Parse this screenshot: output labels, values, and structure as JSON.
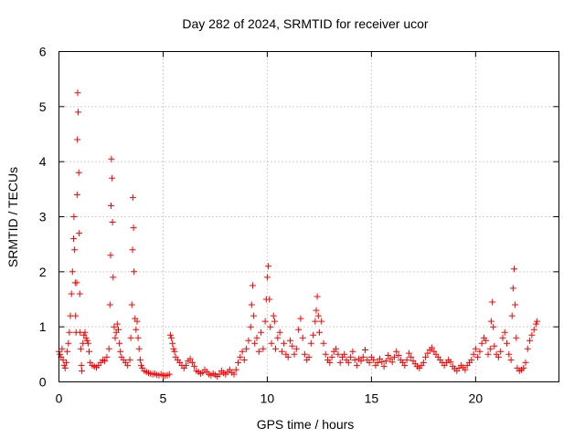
{
  "chart_data": {
    "type": "scatter",
    "title": "Day 282 of 2024, SRMTID for receiver ucor",
    "xlabel": "GPS time / hours",
    "ylabel": "SRMTID / TECUs",
    "xlim": [
      0,
      24
    ],
    "ylim": [
      0,
      6
    ],
    "xticks": [
      0,
      5,
      10,
      15,
      20
    ],
    "yticks": [
      0,
      1,
      2,
      3,
      4,
      5,
      6
    ],
    "grid": true,
    "marker": "+",
    "color": "#ff0000",
    "series": [
      {
        "name": "SRMTID",
        "points": [
          [
            0.0,
            0.55
          ],
          [
            0.05,
            0.5
          ],
          [
            0.1,
            0.45
          ],
          [
            0.15,
            0.6
          ],
          [
            0.2,
            0.4
          ],
          [
            0.25,
            0.3
          ],
          [
            0.3,
            0.25
          ],
          [
            0.35,
            0.35
          ],
          [
            0.4,
            0.55
          ],
          [
            0.45,
            0.7
          ],
          [
            0.5,
            0.9
          ],
          [
            0.55,
            1.2
          ],
          [
            0.6,
            1.6
          ],
          [
            0.65,
            2.0
          ],
          [
            0.7,
            2.6
          ],
          [
            0.72,
            3.0
          ],
          [
            0.75,
            2.4
          ],
          [
            0.78,
            1.8
          ],
          [
            0.8,
            1.2
          ],
          [
            0.82,
            0.9
          ],
          [
            0.85,
            1.8
          ],
          [
            0.87,
            3.4
          ],
          [
            0.88,
            4.4
          ],
          [
            0.9,
            5.25
          ],
          [
            0.92,
            4.9
          ],
          [
            0.95,
            3.8
          ],
          [
            0.97,
            2.7
          ],
          [
            1.0,
            1.6
          ],
          [
            1.02,
            0.9
          ],
          [
            1.05,
            0.6
          ],
          [
            1.08,
            0.3
          ],
          [
            1.1,
            0.2
          ],
          [
            1.15,
            0.7
          ],
          [
            1.2,
            0.85
          ],
          [
            1.25,
            0.9
          ],
          [
            1.3,
            0.8
          ],
          [
            1.35,
            0.75
          ],
          [
            1.4,
            0.7
          ],
          [
            1.45,
            0.55
          ],
          [
            1.5,
            0.35
          ],
          [
            1.6,
            0.3
          ],
          [
            1.7,
            0.28
          ],
          [
            1.8,
            0.26
          ],
          [
            1.9,
            0.3
          ],
          [
            2.0,
            0.35
          ],
          [
            2.1,
            0.4
          ],
          [
            2.2,
            0.38
          ],
          [
            2.3,
            0.45
          ],
          [
            2.4,
            0.6
          ],
          [
            2.45,
            1.4
          ],
          [
            2.48,
            2.3
          ],
          [
            2.5,
            3.2
          ],
          [
            2.52,
            4.05
          ],
          [
            2.55,
            3.7
          ],
          [
            2.57,
            2.9
          ],
          [
            2.6,
            1.9
          ],
          [
            2.65,
            1.0
          ],
          [
            2.7,
            0.8
          ],
          [
            2.75,
            0.9
          ],
          [
            2.8,
            1.05
          ],
          [
            2.85,
            0.95
          ],
          [
            2.9,
            0.7
          ],
          [
            2.95,
            0.55
          ],
          [
            3.0,
            0.45
          ],
          [
            3.1,
            0.4
          ],
          [
            3.2,
            0.35
          ],
          [
            3.3,
            0.3
          ],
          [
            3.4,
            0.4
          ],
          [
            3.45,
            0.8
          ],
          [
            3.5,
            1.4
          ],
          [
            3.53,
            2.4
          ],
          [
            3.55,
            3.35
          ],
          [
            3.58,
            2.8
          ],
          [
            3.6,
            2.0
          ],
          [
            3.65,
            1.15
          ],
          [
            3.7,
            0.95
          ],
          [
            3.75,
            1.1
          ],
          [
            3.8,
            0.8
          ],
          [
            3.85,
            0.6
          ],
          [
            3.9,
            0.4
          ],
          [
            3.95,
            0.3
          ],
          [
            4.0,
            0.25
          ],
          [
            4.1,
            0.2
          ],
          [
            4.2,
            0.18
          ],
          [
            4.3,
            0.16
          ],
          [
            4.4,
            0.15
          ],
          [
            4.5,
            0.14
          ],
          [
            4.6,
            0.15
          ],
          [
            4.7,
            0.13
          ],
          [
            4.8,
            0.12
          ],
          [
            4.9,
            0.14
          ],
          [
            5.0,
            0.12
          ],
          [
            5.1,
            0.11
          ],
          [
            5.2,
            0.12
          ],
          [
            5.3,
            0.14
          ],
          [
            5.35,
            0.85
          ],
          [
            5.4,
            0.8
          ],
          [
            5.45,
            0.7
          ],
          [
            5.5,
            0.6
          ],
          [
            5.55,
            0.55
          ],
          [
            5.6,
            0.45
          ],
          [
            5.7,
            0.4
          ],
          [
            5.8,
            0.35
          ],
          [
            5.9,
            0.3
          ],
          [
            6.0,
            0.25
          ],
          [
            6.1,
            0.3
          ],
          [
            6.2,
            0.38
          ],
          [
            6.3,
            0.42
          ],
          [
            6.4,
            0.35
          ],
          [
            6.5,
            0.28
          ],
          [
            6.6,
            0.2
          ],
          [
            6.7,
            0.18
          ],
          [
            6.8,
            0.15
          ],
          [
            6.9,
            0.17
          ],
          [
            7.0,
            0.22
          ],
          [
            7.1,
            0.18
          ],
          [
            7.2,
            0.14
          ],
          [
            7.3,
            0.12
          ],
          [
            7.4,
            0.15
          ],
          [
            7.5,
            0.13
          ],
          [
            7.6,
            0.1
          ],
          [
            7.7,
            0.14
          ],
          [
            7.8,
            0.2
          ],
          [
            7.9,
            0.16
          ],
          [
            8.0,
            0.14
          ],
          [
            8.1,
            0.18
          ],
          [
            8.2,
            0.22
          ],
          [
            8.3,
            0.17
          ],
          [
            8.4,
            0.14
          ],
          [
            8.5,
            0.22
          ],
          [
            8.6,
            0.35
          ],
          [
            8.7,
            0.45
          ],
          [
            8.8,
            0.55
          ],
          [
            8.9,
            0.4
          ],
          [
            9.0,
            0.6
          ],
          [
            9.1,
            0.75
          ],
          [
            9.2,
            1.0
          ],
          [
            9.25,
            1.4
          ],
          [
            9.3,
            1.75
          ],
          [
            9.35,
            1.2
          ],
          [
            9.4,
            0.7
          ],
          [
            9.5,
            0.8
          ],
          [
            9.6,
            0.55
          ],
          [
            9.7,
            0.9
          ],
          [
            9.8,
            0.6
          ],
          [
            9.9,
            1.1
          ],
          [
            9.95,
            1.5
          ],
          [
            10.0,
            1.9
          ],
          [
            10.05,
            2.1
          ],
          [
            10.1,
            1.5
          ],
          [
            10.15,
            1.0
          ],
          [
            10.2,
            0.7
          ],
          [
            10.3,
            1.2
          ],
          [
            10.35,
            1.1
          ],
          [
            10.4,
            0.6
          ],
          [
            10.5,
            0.8
          ],
          [
            10.6,
            0.9
          ],
          [
            10.7,
            0.55
          ],
          [
            10.8,
            0.7
          ],
          [
            10.9,
            0.5
          ],
          [
            11.0,
            0.45
          ],
          [
            11.1,
            0.75
          ],
          [
            11.2,
            0.65
          ],
          [
            11.3,
            0.5
          ],
          [
            11.4,
            0.6
          ],
          [
            11.5,
            0.95
          ],
          [
            11.6,
            1.15
          ],
          [
            11.7,
            0.8
          ],
          [
            11.8,
            0.5
          ],
          [
            11.9,
            0.4
          ],
          [
            12.0,
            0.45
          ],
          [
            12.1,
            0.7
          ],
          [
            12.2,
            0.85
          ],
          [
            12.3,
            1.1
          ],
          [
            12.35,
            1.3
          ],
          [
            12.4,
            1.55
          ],
          [
            12.45,
            1.2
          ],
          [
            12.5,
            0.9
          ],
          [
            12.6,
            1.1
          ],
          [
            12.7,
            0.7
          ],
          [
            12.8,
            0.5
          ],
          [
            12.9,
            0.4
          ],
          [
            13.0,
            0.35
          ],
          [
            13.1,
            0.45
          ],
          [
            13.2,
            0.55
          ],
          [
            13.3,
            0.6
          ],
          [
            13.4,
            0.5
          ],
          [
            13.5,
            0.35
          ],
          [
            13.6,
            0.45
          ],
          [
            13.7,
            0.5
          ],
          [
            13.8,
            0.4
          ],
          [
            13.9,
            0.35
          ],
          [
            14.0,
            0.45
          ],
          [
            14.1,
            0.55
          ],
          [
            14.2,
            0.4
          ],
          [
            14.3,
            0.3
          ],
          [
            14.4,
            0.42
          ],
          [
            14.5,
            0.38
          ],
          [
            14.6,
            0.45
          ],
          [
            14.7,
            0.58
          ],
          [
            14.8,
            0.4
          ],
          [
            14.9,
            0.35
          ],
          [
            15.0,
            0.45
          ],
          [
            15.1,
            0.4
          ],
          [
            15.2,
            0.3
          ],
          [
            15.3,
            0.35
          ],
          [
            15.4,
            0.42
          ],
          [
            15.5,
            0.36
          ],
          [
            15.6,
            0.28
          ],
          [
            15.7,
            0.38
          ],
          [
            15.8,
            0.48
          ],
          [
            15.9,
            0.42
          ],
          [
            16.0,
            0.36
          ],
          [
            16.1,
            0.45
          ],
          [
            16.2,
            0.55
          ],
          [
            16.3,
            0.48
          ],
          [
            16.4,
            0.4
          ],
          [
            16.5,
            0.35
          ],
          [
            16.6,
            0.3
          ],
          [
            16.7,
            0.4
          ],
          [
            16.8,
            0.52
          ],
          [
            16.9,
            0.45
          ],
          [
            17.0,
            0.38
          ],
          [
            17.1,
            0.33
          ],
          [
            17.2,
            0.28
          ],
          [
            17.3,
            0.25
          ],
          [
            17.4,
            0.3
          ],
          [
            17.5,
            0.35
          ],
          [
            17.6,
            0.45
          ],
          [
            17.7,
            0.52
          ],
          [
            17.8,
            0.58
          ],
          [
            17.9,
            0.62
          ],
          [
            18.0,
            0.55
          ],
          [
            18.1,
            0.5
          ],
          [
            18.2,
            0.45
          ],
          [
            18.3,
            0.4
          ],
          [
            18.4,
            0.35
          ],
          [
            18.5,
            0.3
          ],
          [
            18.6,
            0.35
          ],
          [
            18.7,
            0.4
          ],
          [
            18.8,
            0.36
          ],
          [
            18.9,
            0.28
          ],
          [
            19.0,
            0.24
          ],
          [
            19.1,
            0.2
          ],
          [
            19.2,
            0.25
          ],
          [
            19.3,
            0.3
          ],
          [
            19.4,
            0.26
          ],
          [
            19.5,
            0.22
          ],
          [
            19.6,
            0.3
          ],
          [
            19.7,
            0.35
          ],
          [
            19.8,
            0.4
          ],
          [
            19.9,
            0.5
          ],
          [
            20.0,
            0.6
          ],
          [
            20.1,
            0.45
          ],
          [
            20.2,
            0.55
          ],
          [
            20.3,
            0.7
          ],
          [
            20.4,
            0.8
          ],
          [
            20.5,
            0.75
          ],
          [
            20.6,
            0.5
          ],
          [
            20.7,
            0.6
          ],
          [
            20.75,
            1.1
          ],
          [
            20.8,
            1.45
          ],
          [
            20.85,
            1.0
          ],
          [
            20.9,
            0.65
          ],
          [
            21.0,
            0.5
          ],
          [
            21.1,
            0.45
          ],
          [
            21.2,
            0.55
          ],
          [
            21.3,
            0.8
          ],
          [
            21.4,
            0.9
          ],
          [
            21.5,
            0.7
          ],
          [
            21.6,
            0.5
          ],
          [
            21.7,
            0.4
          ],
          [
            21.75,
            1.2
          ],
          [
            21.8,
            1.7
          ],
          [
            21.85,
            2.05
          ],
          [
            21.9,
            1.4
          ],
          [
            21.95,
            0.8
          ],
          [
            22.0,
            0.25
          ],
          [
            22.1,
            0.2
          ],
          [
            22.2,
            0.22
          ],
          [
            22.3,
            0.25
          ],
          [
            22.4,
            0.35
          ],
          [
            22.5,
            0.6
          ],
          [
            22.6,
            0.75
          ],
          [
            22.7,
            0.85
          ],
          [
            22.8,
            0.95
          ],
          [
            22.9,
            1.05
          ],
          [
            22.95,
            1.1
          ]
        ]
      }
    ]
  }
}
